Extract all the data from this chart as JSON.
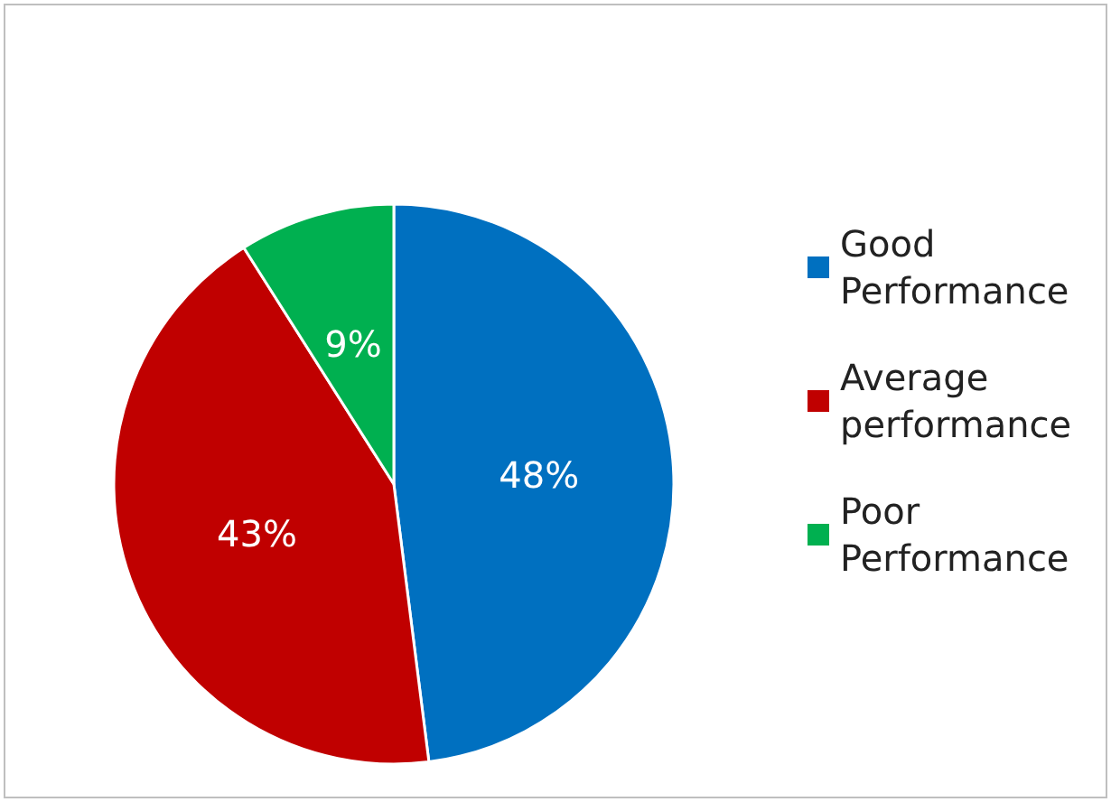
{
  "chart_data": {
    "type": "pie",
    "categories": [
      "Good Performance",
      "Average performance",
      "Poor Performance"
    ],
    "values": [
      48,
      43,
      9
    ],
    "colors": [
      "#0070c0",
      "#c00000",
      "#00b050"
    ],
    "value_labels": [
      "48%",
      "43%",
      "9%"
    ],
    "legend": "right"
  }
}
